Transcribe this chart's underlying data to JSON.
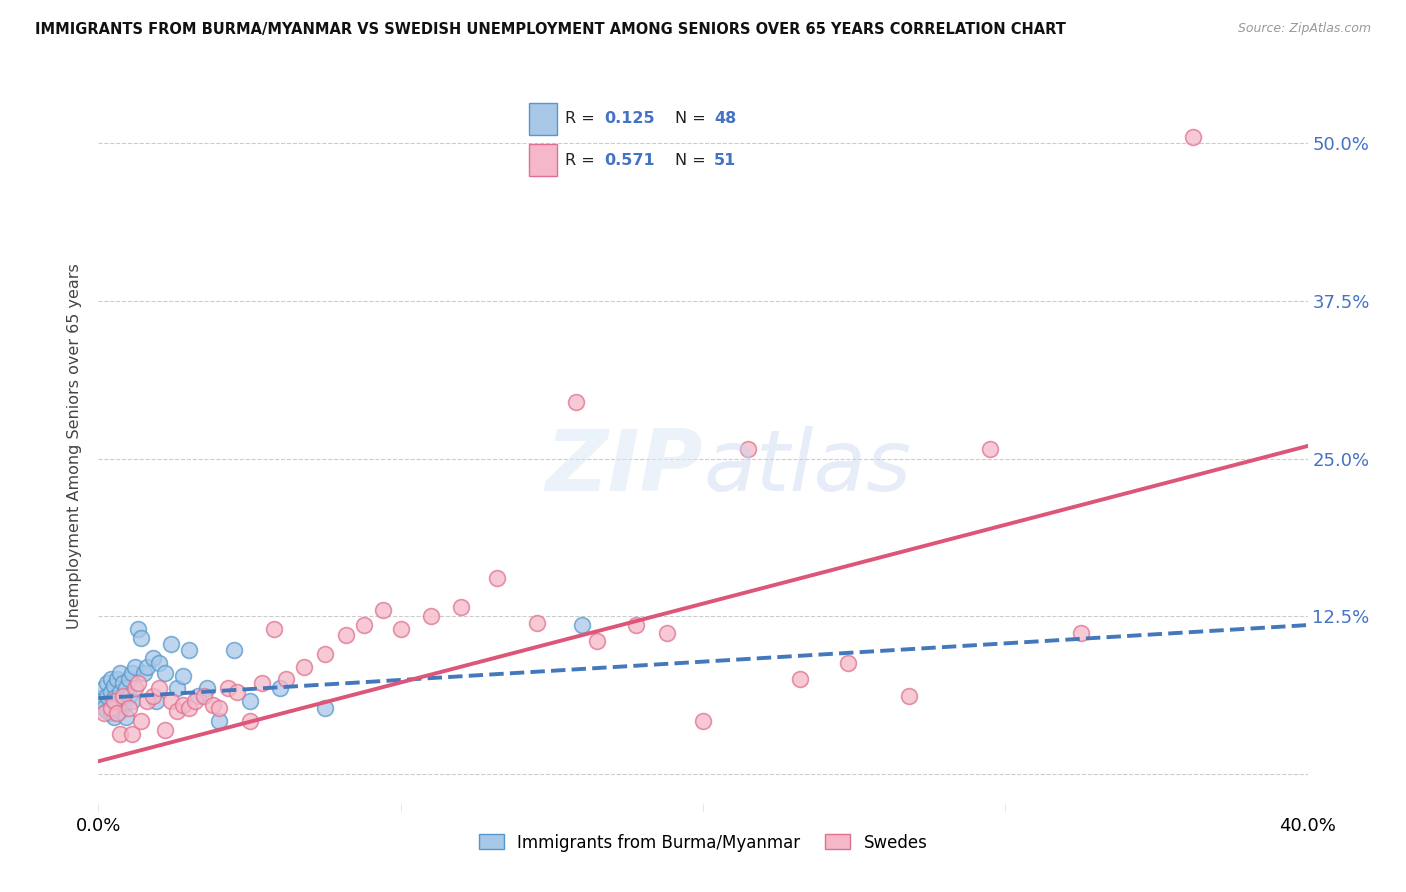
{
  "title": "IMMIGRANTS FROM BURMA/MYANMAR VS SWEDISH UNEMPLOYMENT AMONG SENIORS OVER 65 YEARS CORRELATION CHART",
  "source": "Source: ZipAtlas.com",
  "ylabel": "Unemployment Among Seniors over 65 years",
  "xlim": [
    0.0,
    0.4
  ],
  "ylim": [
    -0.03,
    0.55
  ],
  "yticks": [
    0.0,
    0.125,
    0.25,
    0.375,
    0.5
  ],
  "ytick_labels": [
    "",
    "12.5%",
    "25.0%",
    "37.5%",
    "50.0%"
  ],
  "legend_r1": "0.125",
  "legend_n1": "48",
  "legend_r2": "0.571",
  "legend_n2": "51",
  "legend_label1": "Immigrants from Burma/Myanmar",
  "legend_label2": "Swedes",
  "color_blue_fill": "#a8c8e8",
  "color_blue_edge": "#5599cc",
  "color_pink_fill": "#f4b8c8",
  "color_pink_edge": "#e07090",
  "color_blue_line": "#4477bb",
  "color_pink_line": "#dd5577",
  "color_right_axis": "#4472c4",
  "background": "#ffffff",
  "blue_scatter_x": [
    0.001,
    0.001,
    0.002,
    0.002,
    0.002,
    0.003,
    0.003,
    0.003,
    0.004,
    0.004,
    0.004,
    0.005,
    0.005,
    0.005,
    0.006,
    0.006,
    0.007,
    0.007,
    0.007,
    0.008,
    0.008,
    0.009,
    0.009,
    0.01,
    0.01,
    0.011,
    0.011,
    0.012,
    0.013,
    0.014,
    0.015,
    0.016,
    0.018,
    0.019,
    0.02,
    0.022,
    0.024,
    0.026,
    0.028,
    0.03,
    0.033,
    0.036,
    0.04,
    0.045,
    0.05,
    0.06,
    0.075,
    0.16
  ],
  "blue_scatter_y": [
    0.06,
    0.055,
    0.068,
    0.058,
    0.052,
    0.072,
    0.062,
    0.05,
    0.075,
    0.065,
    0.048,
    0.07,
    0.06,
    0.045,
    0.075,
    0.058,
    0.08,
    0.065,
    0.05,
    0.072,
    0.055,
    0.068,
    0.045,
    0.075,
    0.062,
    0.08,
    0.058,
    0.085,
    0.115,
    0.108,
    0.08,
    0.085,
    0.092,
    0.058,
    0.088,
    0.08,
    0.103,
    0.068,
    0.078,
    0.098,
    0.062,
    0.068,
    0.042,
    0.098,
    0.058,
    0.068,
    0.052,
    0.118
  ],
  "pink_scatter_x": [
    0.002,
    0.004,
    0.005,
    0.006,
    0.007,
    0.008,
    0.01,
    0.011,
    0.012,
    0.013,
    0.014,
    0.016,
    0.018,
    0.02,
    0.022,
    0.024,
    0.026,
    0.028,
    0.03,
    0.032,
    0.035,
    0.038,
    0.04,
    0.043,
    0.046,
    0.05,
    0.054,
    0.058,
    0.062,
    0.068,
    0.075,
    0.082,
    0.088,
    0.094,
    0.1,
    0.11,
    0.12,
    0.132,
    0.145,
    0.158,
    0.165,
    0.178,
    0.188,
    0.2,
    0.215,
    0.232,
    0.248,
    0.268,
    0.295,
    0.325,
    0.362
  ],
  "pink_scatter_y": [
    0.048,
    0.052,
    0.058,
    0.048,
    0.032,
    0.062,
    0.052,
    0.032,
    0.068,
    0.072,
    0.042,
    0.058,
    0.062,
    0.068,
    0.035,
    0.058,
    0.05,
    0.055,
    0.052,
    0.058,
    0.062,
    0.055,
    0.052,
    0.068,
    0.065,
    0.042,
    0.072,
    0.115,
    0.075,
    0.085,
    0.095,
    0.11,
    0.118,
    0.13,
    0.115,
    0.125,
    0.132,
    0.155,
    0.12,
    0.295,
    0.105,
    0.118,
    0.112,
    0.042,
    0.258,
    0.075,
    0.088,
    0.062,
    0.258,
    0.112,
    0.505
  ],
  "blue_trend_x": [
    0.0,
    0.4
  ],
  "blue_trend_y": [
    0.06,
    0.118
  ],
  "pink_trend_x": [
    0.0,
    0.4
  ],
  "pink_trend_y": [
    0.01,
    0.26
  ]
}
